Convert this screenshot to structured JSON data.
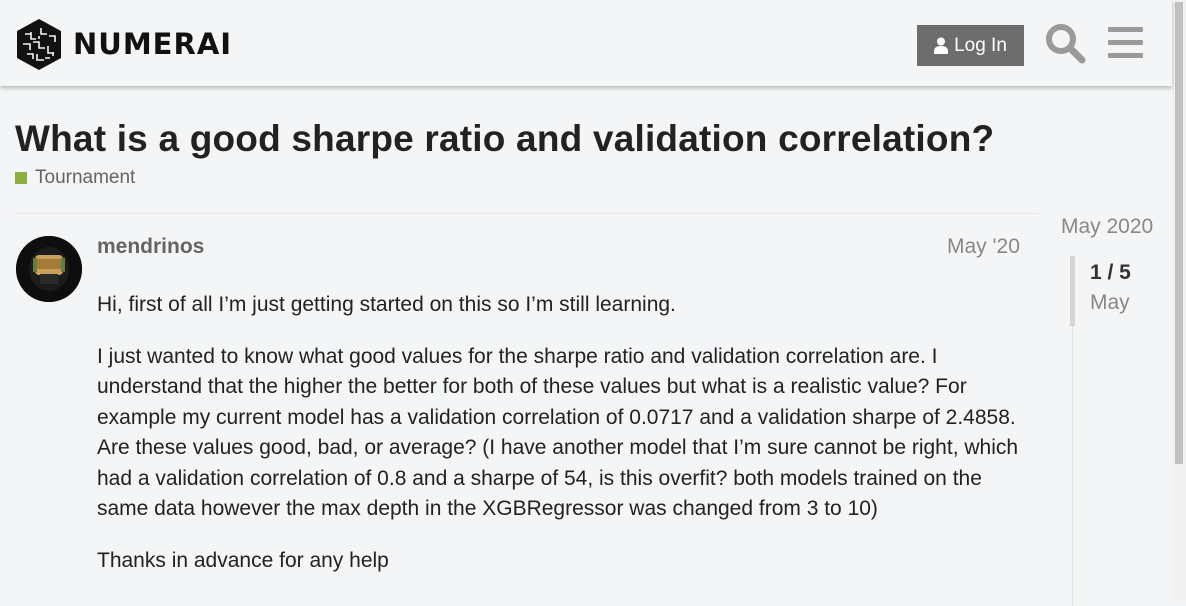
{
  "header": {
    "brand": "NUMERAI",
    "login_label": "Log In"
  },
  "icons": {
    "user": "user-icon",
    "search": "search-icon",
    "menu": "hamburger-menu-icon"
  },
  "topic": {
    "title": "What is a good sharpe ratio and validation correlation?",
    "category": "Tournament",
    "category_color": "#8bb03e"
  },
  "post": {
    "author": "mendrinos",
    "date": "May '20",
    "paragraphs": [
      "Hi, first of all I’m just getting started on this so I’m still learning.",
      "I just wanted to know what good values for the sharpe ratio and validation correlation are. I understand that the higher the better for both of these values but what is a realistic value? For example my current model has a validation correlation of 0.0717 and a validation sharpe of 2.4858. Are these values good, bad, or average? (I have another model that I’m sure cannot be right, which had a validation correlation of 0.8 and a sharpe of 54, is this overfit? both models trained on the same data however the max depth in the XGBRegressor was changed from 3 to 10)",
      "Thanks in advance for any help"
    ]
  },
  "timeline": {
    "start_label": "May 2020",
    "position": "1 / 5",
    "current_label": "May"
  }
}
